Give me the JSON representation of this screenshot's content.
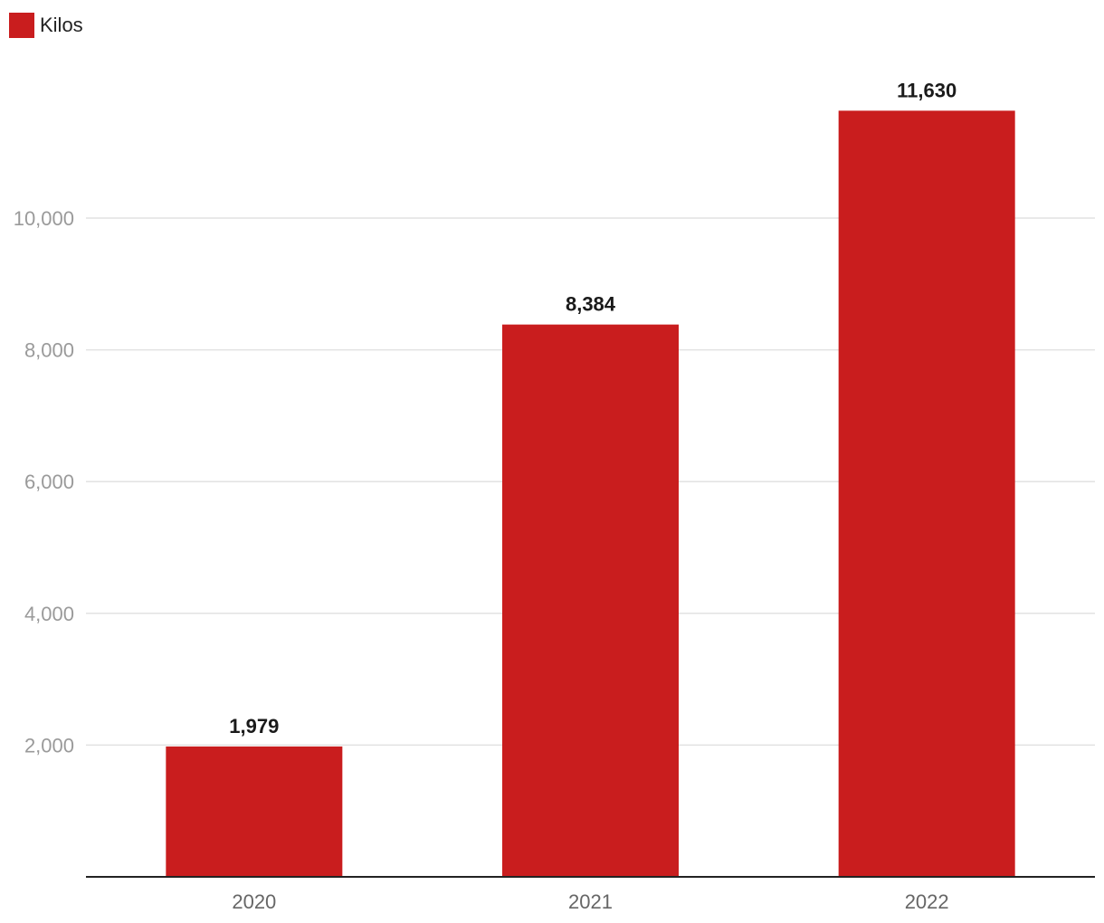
{
  "legend": {
    "label": "Kilos",
    "color": "#c91d1e"
  },
  "chart_data": {
    "type": "bar",
    "categories": [
      "2020",
      "2021",
      "2022"
    ],
    "series": [
      {
        "name": "Kilos",
        "values": [
          1979,
          8384,
          11630
        ],
        "color": "#c91d1e"
      }
    ],
    "data_labels": [
      "1,979",
      "8,384",
      "11,630"
    ],
    "yticks": [
      2000,
      4000,
      6000,
      8000,
      10000
    ],
    "ytick_labels": [
      "2,000",
      "4,000",
      "6,000",
      "8,000",
      "10,000"
    ],
    "ylim": [
      0,
      12000
    ],
    "grid": true,
    "legend_position": "top-left",
    "title": "",
    "xlabel": "",
    "ylabel": ""
  }
}
